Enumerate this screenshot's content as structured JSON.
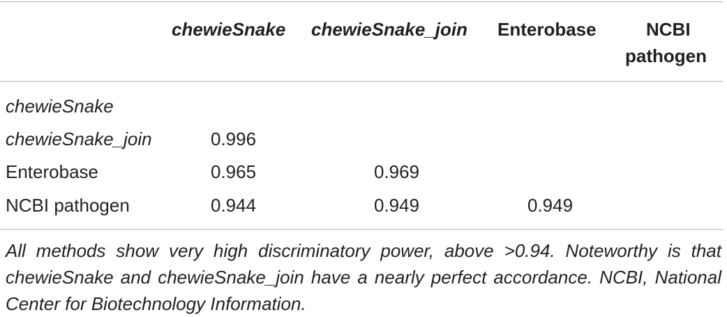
{
  "table": {
    "columns": [
      "chewieSnake",
      "chewieSnake_join",
      "Enterobase",
      "NCBI pathogen"
    ],
    "column_header_lines": {
      "ncbi_line1": "NCBI",
      "ncbi_line2": "pathogen"
    },
    "rows": [
      {
        "label": "chewieSnake",
        "values": [
          "",
          "",
          "",
          ""
        ]
      },
      {
        "label": "chewieSnake_join",
        "values": [
          "0.996",
          "",
          "",
          ""
        ]
      },
      {
        "label": "Enterobase",
        "values": [
          "0.965",
          "0.969",
          "",
          ""
        ]
      },
      {
        "label": "NCBI pathogen",
        "values": [
          "0.944",
          "0.949",
          "0.949",
          ""
        ]
      }
    ]
  },
  "footnote": "All methods show very high discriminatory power, above >0.94. Noteworthy is that chewieSnake and chewieSnake_join have a nearly perfect accordance. NCBI, National Center for Biotechnology Information."
}
